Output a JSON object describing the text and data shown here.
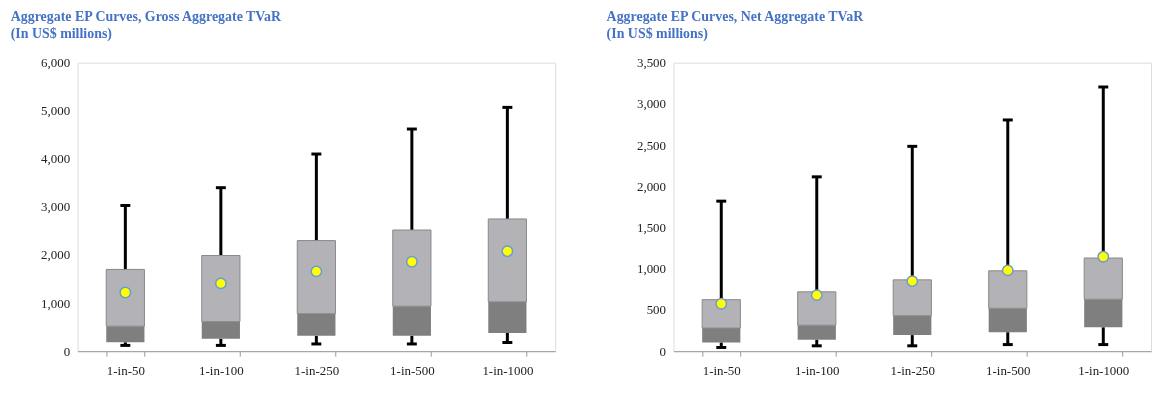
{
  "chart_data": [
    {
      "type": "box",
      "title": "Aggregate EP Curves, Gross Aggregate TVaR",
      "subtitle": "(In US$ millions)",
      "categories": [
        "1-in-50",
        "1-in-100",
        "1-in-250",
        "1-in-500",
        "1-in-1000"
      ],
      "ylim": [
        0,
        6000
      ],
      "yticks": [
        0,
        {
          "value": 1000,
          "label": "1,000"
        },
        {
          "value": 2000,
          "label": "2,000"
        },
        {
          "value": 3000,
          "label": "3,000"
        },
        {
          "value": 4000,
          "label": "4,000"
        },
        {
          "value": 5000,
          "label": "5,000"
        },
        {
          "value": 6000,
          "label": "6,000"
        }
      ],
      "grid": false,
      "series": [
        {
          "color": "#7f7f7f",
          "boxes": [
            {
              "low": 120,
              "q1": 185,
              "median": 520,
              "q3": 1700,
              "high": 3030,
              "mean": 1220
            },
            {
              "low": 120,
              "q1": 260,
              "median": 615,
              "q3": 1990,
              "high": 3400,
              "mean": 1410
            },
            {
              "low": 150,
              "q1": 320,
              "median": 780,
              "q3": 2300,
              "high": 4100,
              "mean": 1660
            },
            {
              "low": 150,
              "q1": 320,
              "median": 935,
              "q3": 2520,
              "high": 4620,
              "mean": 1860
            },
            {
              "low": 180,
              "q1": 380,
              "median": 1025,
              "q3": 2750,
              "high": 5070,
              "mean": 2080
            }
          ]
        }
      ]
    },
    {
      "type": "box",
      "title": "Aggregate EP Curves, Net Aggregate TVaR",
      "subtitle": "(In US$ millions)",
      "categories": [
        "1-in-50",
        "1-in-100",
        "1-in-250",
        "1-in-500",
        "1-in-1000"
      ],
      "ylim": [
        0,
        3500
      ],
      "yticks": [
        0,
        500,
        {
          "value": 1000,
          "label": "1,000"
        },
        {
          "value": 1500,
          "label": "1,500"
        },
        {
          "value": 2000,
          "label": "2,000"
        },
        {
          "value": 2500,
          "label": "2,500"
        },
        {
          "value": 3000,
          "label": "3,000"
        },
        {
          "value": 3500,
          "label": "3,500"
        }
      ],
      "grid": false,
      "series": [
        {
          "color": "#7f7f7f",
          "boxes": [
            {
              "low": 45,
              "q1": 105,
              "median": 280,
              "q3": 625,
              "high": 1820,
              "mean": 575
            },
            {
              "low": 65,
              "q1": 140,
              "median": 315,
              "q3": 720,
              "high": 2115,
              "mean": 680
            },
            {
              "low": 65,
              "q1": 195,
              "median": 430,
              "q3": 865,
              "high": 2485,
              "mean": 850
            },
            {
              "low": 80,
              "q1": 230,
              "median": 520,
              "q3": 975,
              "high": 2805,
              "mean": 980
            },
            {
              "low": 80,
              "q1": 290,
              "median": 630,
              "q3": 1130,
              "high": 3205,
              "mean": 1145
            }
          ]
        }
      ]
    }
  ]
}
